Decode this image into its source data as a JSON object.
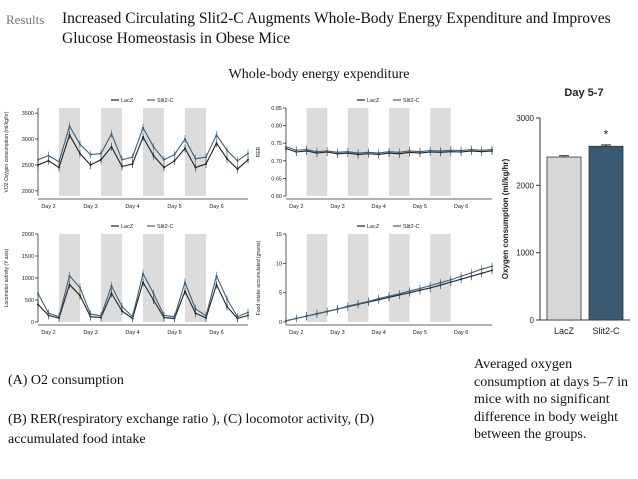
{
  "header": {
    "tag": "Results",
    "title": "Increased Circulating Slit2-C Augments Whole-Body Energy Expenditure and Improves Glucose Homeostasis in Obese Mice"
  },
  "section_title": "Whole-body energy expenditure",
  "captions": {
    "a": "(A) O2 consumption",
    "bcd": "(B) RER(respiratory exchange ratio ), (C) locomotor activity, (D) accumulated food intake",
    "bar_note": "Averaged oxygen consumption at days 5–7 in mice with no significant difference in body weight between the groups."
  },
  "colors": {
    "lacz": "#222222",
    "slit2c": "#3d5f7a",
    "dark_band": "#dcdcdc",
    "bar_lacz": "#d8d8d8",
    "bar_slit2c": "#3a5a73"
  },
  "chart_data": [
    {
      "id": "A",
      "type": "line",
      "ylabel": "VO2 Oxygen consumption (ml/kg/hr)",
      "yticks": [
        2000,
        2500,
        3000,
        3500
      ],
      "ylim": [
        1900,
        3600
      ],
      "x_labels": [
        "Day 2",
        "Day 3",
        "Day 4",
        "Day 5",
        "Day 6"
      ],
      "series": [
        {
          "name": "LacZ",
          "values": [
            2500,
            2580,
            2450,
            3080,
            2720,
            2500,
            2600,
            2850,
            2470,
            2520,
            3040,
            2680,
            2450,
            2580,
            2820,
            2450,
            2520,
            2920,
            2620,
            2420,
            2600
          ]
        },
        {
          "name": "Slit2-C",
          "values": [
            2600,
            2680,
            2560,
            3250,
            2900,
            2700,
            2720,
            3100,
            2600,
            2650,
            3220,
            2850,
            2600,
            2700,
            3000,
            2620,
            2650,
            3080,
            2780,
            2580,
            2720
          ]
        }
      ]
    },
    {
      "id": "B",
      "type": "line",
      "ylabel": "RER",
      "yticks": [
        0.6,
        0.65,
        0.7,
        0.75,
        0.8,
        0.85
      ],
      "ylim": [
        0.6,
        0.85
      ],
      "x_labels": [
        "Day 2",
        "Day 3",
        "Day 4",
        "Day 5",
        "Day 6"
      ],
      "series": [
        {
          "name": "LacZ",
          "values": [
            0.735,
            0.725,
            0.728,
            0.722,
            0.725,
            0.72,
            0.722,
            0.718,
            0.72,
            0.718,
            0.722,
            0.72,
            0.724,
            0.722,
            0.725,
            0.724,
            0.726,
            0.725,
            0.728,
            0.726,
            0.728
          ]
        },
        {
          "name": "Slit2-C",
          "values": [
            0.74,
            0.73,
            0.732,
            0.726,
            0.728,
            0.724,
            0.726,
            0.722,
            0.724,
            0.722,
            0.726,
            0.724,
            0.728,
            0.726,
            0.729,
            0.728,
            0.73,
            0.729,
            0.732,
            0.73,
            0.732
          ]
        }
      ]
    },
    {
      "id": "C",
      "type": "line",
      "ylabel": "Locomotor activity (Y axis)",
      "yticks": [
        0,
        500,
        1000,
        1500,
        2000
      ],
      "ylim": [
        0,
        2000
      ],
      "x_labels": [
        "Day 2",
        "Day 3",
        "Day 4",
        "Day 5",
        "Day 6"
      ],
      "series": [
        {
          "name": "LacZ",
          "values": [
            400,
            150,
            90,
            850,
            600,
            120,
            100,
            650,
            250,
            80,
            900,
            500,
            100,
            80,
            700,
            200,
            90,
            850,
            350,
            80,
            150
          ]
        },
        {
          "name": "Slit2-C",
          "values": [
            650,
            200,
            120,
            1050,
            780,
            180,
            140,
            820,
            350,
            120,
            1100,
            650,
            150,
            120,
            900,
            300,
            140,
            1050,
            520,
            120,
            220
          ]
        }
      ]
    },
    {
      "id": "D",
      "type": "line",
      "ylabel": "Food intake accumulated (grams)",
      "yticks": [
        0,
        5,
        10,
        15
      ],
      "ylim": [
        0,
        15
      ],
      "x_labels": [
        "Day 2",
        "Day 3",
        "Day 4",
        "Day 5",
        "Day 6"
      ],
      "series": [
        {
          "name": "LacZ",
          "values": [
            0.2,
            0.6,
            1.0,
            1.4,
            1.8,
            2.2,
            2.6,
            3.0,
            3.4,
            3.8,
            4.2,
            4.6,
            5.0,
            5.4,
            5.8,
            6.3,
            6.8,
            7.3,
            7.8,
            8.3,
            8.8
          ]
        },
        {
          "name": "Slit2-C",
          "values": [
            0.2,
            0.6,
            1.0,
            1.4,
            1.8,
            2.2,
            2.7,
            3.1,
            3.5,
            4.0,
            4.4,
            4.8,
            5.3,
            5.7,
            6.2,
            6.7,
            7.2,
            7.8,
            8.4,
            9.0,
            9.5
          ]
        }
      ]
    },
    {
      "id": "E",
      "type": "bar",
      "title": "Day 5-7",
      "ylabel": "Oxygen consumption (ml/kg/hr)",
      "categories": [
        "LacZ",
        "Slit2-C"
      ],
      "values": [
        2420,
        2580
      ],
      "errors": [
        20,
        20
      ],
      "yticks": [
        0,
        1000,
        2000,
        3000
      ],
      "ylim": [
        0,
        3000
      ],
      "annotation": "*"
    }
  ]
}
